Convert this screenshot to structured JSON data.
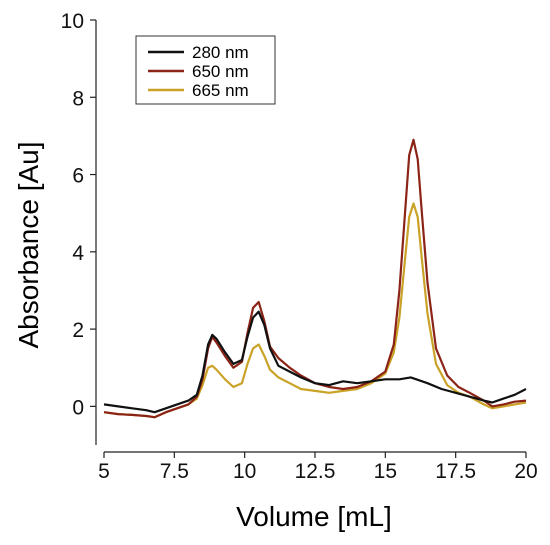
{
  "chart_data": {
    "type": "line",
    "xlabel": "Volume [mL]",
    "ylabel": "Absorbance [Au]",
    "xlim": [
      5,
      20
    ],
    "ylim": [
      -1,
      10
    ],
    "xticks": [
      5,
      7.5,
      10,
      12.5,
      15,
      17.5,
      20
    ],
    "xtick_labels": [
      "5",
      "7.5",
      "10",
      "12.5",
      "15",
      "17.5",
      "20"
    ],
    "yticks": [
      0,
      2,
      4,
      6,
      8,
      10
    ],
    "ytick_labels": [
      "0",
      "2",
      "4",
      "6",
      "8",
      "10"
    ],
    "grid": false,
    "legend_position": "top-left",
    "series": [
      {
        "name": "280 nm",
        "color": "#111111",
        "x": [
          5.0,
          5.5,
          6.0,
          6.5,
          6.8,
          7.2,
          7.6,
          8.0,
          8.3,
          8.5,
          8.7,
          8.85,
          9.0,
          9.3,
          9.6,
          9.9,
          10.1,
          10.3,
          10.5,
          10.7,
          10.9,
          11.2,
          11.6,
          12.0,
          12.5,
          13.0,
          13.5,
          14.0,
          14.5,
          15.0,
          15.5,
          15.9,
          16.1,
          16.5,
          17.0,
          17.5,
          18.0,
          18.5,
          18.8,
          19.2,
          19.6,
          20.0
        ],
        "y": [
          0.05,
          0.0,
          -0.05,
          -0.1,
          -0.15,
          -0.05,
          0.05,
          0.15,
          0.3,
          0.8,
          1.6,
          1.85,
          1.75,
          1.4,
          1.1,
          1.2,
          1.8,
          2.3,
          2.45,
          2.1,
          1.5,
          1.05,
          0.9,
          0.75,
          0.6,
          0.55,
          0.65,
          0.6,
          0.65,
          0.7,
          0.7,
          0.75,
          0.7,
          0.6,
          0.45,
          0.35,
          0.25,
          0.15,
          0.1,
          0.2,
          0.3,
          0.45
        ]
      },
      {
        "name": "650 nm",
        "color": "#8b2317",
        "x": [
          5.0,
          5.5,
          6.0,
          6.5,
          6.8,
          7.2,
          7.6,
          8.0,
          8.3,
          8.5,
          8.7,
          8.85,
          9.0,
          9.3,
          9.6,
          9.9,
          10.1,
          10.3,
          10.5,
          10.7,
          10.9,
          11.2,
          11.6,
          12.0,
          12.5,
          13.0,
          13.5,
          14.0,
          14.5,
          15.0,
          15.3,
          15.5,
          15.7,
          15.85,
          16.0,
          16.15,
          16.3,
          16.5,
          16.8,
          17.2,
          17.6,
          18.0,
          18.5,
          18.8,
          19.2,
          19.6,
          20.0
        ],
        "y": [
          -0.15,
          -0.2,
          -0.22,
          -0.25,
          -0.28,
          -0.15,
          -0.05,
          0.05,
          0.25,
          0.7,
          1.5,
          1.8,
          1.65,
          1.3,
          1.0,
          1.15,
          1.9,
          2.55,
          2.7,
          2.2,
          1.55,
          1.25,
          1.0,
          0.8,
          0.6,
          0.5,
          0.45,
          0.5,
          0.65,
          0.9,
          1.6,
          3.0,
          5.0,
          6.5,
          6.9,
          6.4,
          5.0,
          3.2,
          1.5,
          0.8,
          0.5,
          0.35,
          0.15,
          0.0,
          0.05,
          0.12,
          0.15
        ]
      },
      {
        "name": "665 nm",
        "color": "#c9a227",
        "x": [
          5.0,
          5.5,
          6.0,
          6.5,
          6.8,
          7.2,
          7.6,
          8.0,
          8.3,
          8.5,
          8.7,
          8.85,
          9.0,
          9.3,
          9.6,
          9.9,
          10.1,
          10.3,
          10.5,
          10.7,
          10.9,
          11.2,
          11.6,
          12.0,
          12.5,
          13.0,
          13.5,
          14.0,
          14.5,
          15.0,
          15.3,
          15.5,
          15.7,
          15.85,
          16.0,
          16.15,
          16.3,
          16.5,
          16.8,
          17.2,
          17.6,
          18.0,
          18.5,
          18.8,
          19.2,
          19.6,
          20.0
        ],
        "y": [
          -0.15,
          -0.2,
          -0.22,
          -0.25,
          -0.28,
          -0.15,
          -0.05,
          0.05,
          0.2,
          0.55,
          1.0,
          1.05,
          0.95,
          0.7,
          0.5,
          0.6,
          1.1,
          1.5,
          1.6,
          1.3,
          0.95,
          0.75,
          0.6,
          0.45,
          0.4,
          0.35,
          0.4,
          0.45,
          0.6,
          0.85,
          1.4,
          2.3,
          3.8,
          4.9,
          5.25,
          4.9,
          3.8,
          2.4,
          1.1,
          0.55,
          0.35,
          0.25,
          0.05,
          -0.05,
          0.0,
          0.05,
          0.1
        ]
      }
    ]
  }
}
